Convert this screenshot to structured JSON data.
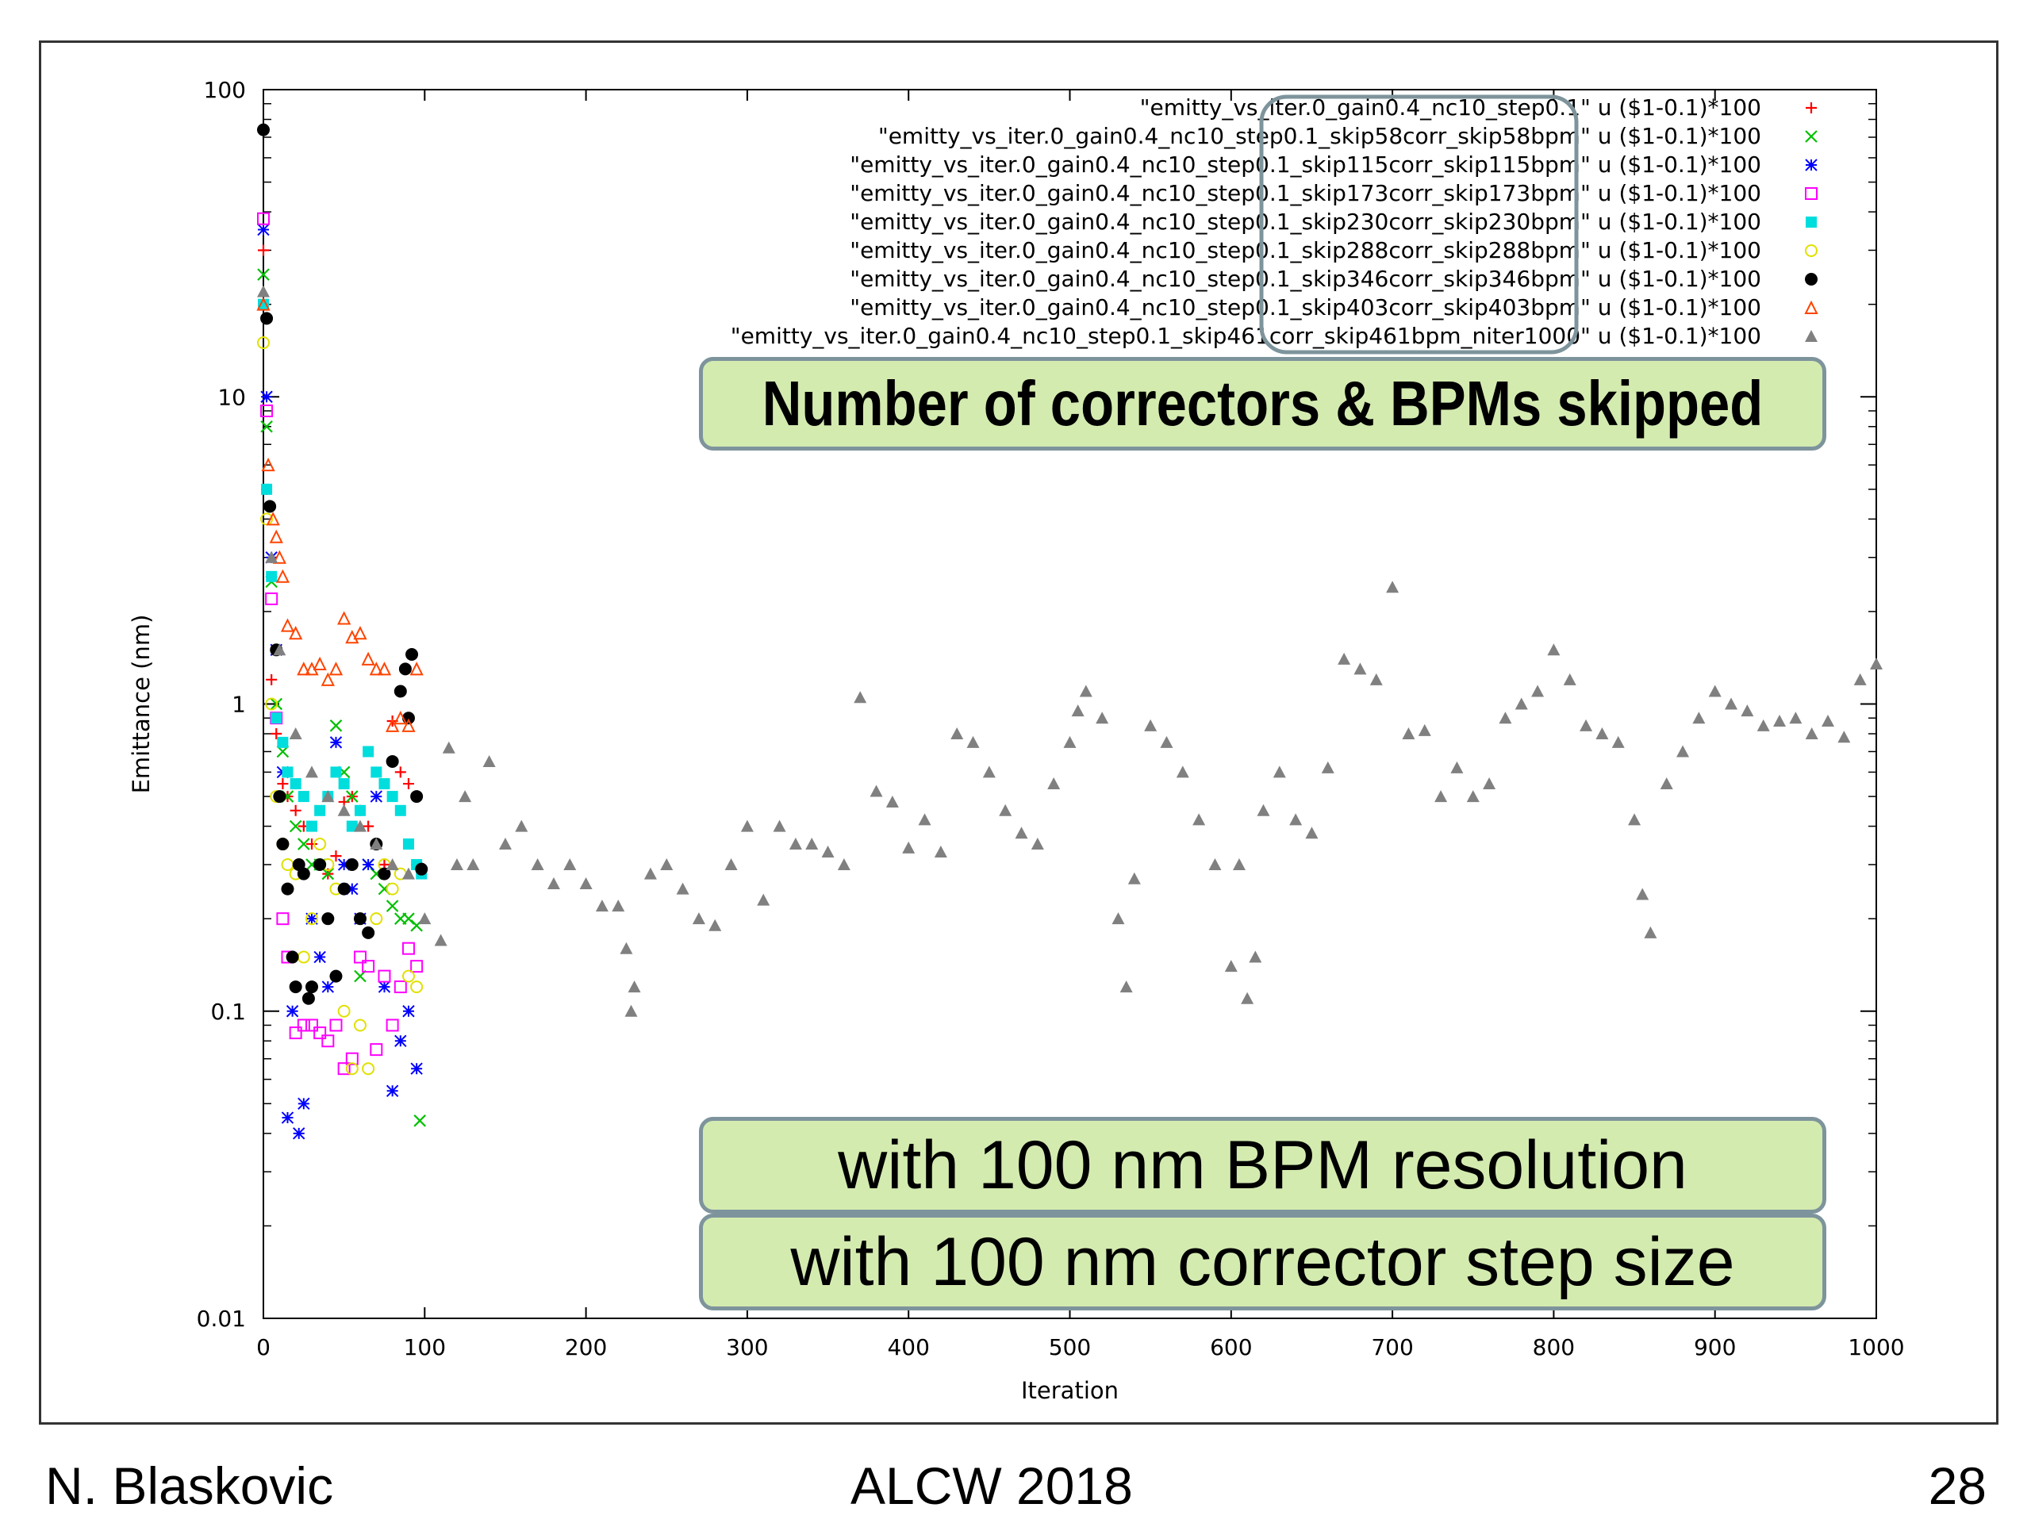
{
  "chart_data": {
    "type": "scatter",
    "xlabel": "Iteration",
    "ylabel": "Emittance (nm)",
    "xlim": [
      0,
      1000
    ],
    "ylim": [
      0.01,
      100
    ],
    "yscale": "log",
    "xticks": [
      "0",
      "100",
      "200",
      "300",
      "400",
      "500",
      "600",
      "700",
      "800",
      "900",
      "1000"
    ],
    "yticks": [
      "0.01",
      "0.1",
      "1",
      "10",
      "100"
    ],
    "legend_position": "top-right",
    "series": [
      {
        "name": "\"emitty_vs_iter.0_gain0.4_nc10_step0.1\" u ($1-0.1)*100",
        "color": "#ff0000",
        "marker": "plus",
        "x": [
          0,
          2,
          5,
          8,
          12,
          15,
          20,
          25,
          30,
          35,
          40,
          45,
          50,
          55,
          60,
          65,
          70,
          75,
          80,
          85,
          90,
          95
        ],
        "y": [
          30,
          5.0,
          1.2,
          0.8,
          0.55,
          0.5,
          0.45,
          0.4,
          0.35,
          0.3,
          0.28,
          0.32,
          0.48,
          0.5,
          0.45,
          0.4,
          0.35,
          0.3,
          0.88,
          0.6,
          0.55,
          0.3
        ]
      },
      {
        "name": "\"emitty_vs_iter.0_gain0.4_nc10_step0.1_skip58corr_skip58bpm\" u ($1-0.1)*100",
        "color": "#00c000",
        "marker": "x",
        "x": [
          0,
          2,
          5,
          8,
          12,
          15,
          20,
          25,
          30,
          35,
          40,
          45,
          50,
          55,
          60,
          65,
          70,
          75,
          80,
          85,
          90,
          95,
          97
        ],
        "y": [
          25,
          8.0,
          2.5,
          1.0,
          0.7,
          0.5,
          0.4,
          0.35,
          0.3,
          0.3,
          0.28,
          0.85,
          0.6,
          0.5,
          0.13,
          0.3,
          0.28,
          0.25,
          0.22,
          0.2,
          0.2,
          0.19,
          0.044
        ]
      },
      {
        "name": "\"emitty_vs_iter.0_gain0.4_nc10_step0.1_skip115corr_skip115bpm\" u ($1-0.1)*100",
        "color": "#0000ff",
        "marker": "star",
        "x": [
          0,
          2,
          5,
          8,
          12,
          15,
          18,
          22,
          25,
          30,
          35,
          40,
          45,
          50,
          55,
          60,
          65,
          70,
          75,
          80,
          85,
          90,
          95
        ],
        "y": [
          35,
          10,
          3.0,
          1.5,
          0.6,
          0.045,
          0.1,
          0.04,
          0.05,
          0.2,
          0.15,
          0.12,
          0.75,
          0.3,
          0.25,
          0.2,
          0.3,
          0.5,
          0.12,
          0.055,
          0.08,
          0.1,
          0.065
        ]
      },
      {
        "name": "\"emitty_vs_iter.0_gain0.4_nc10_step0.1_skip173corr_skip173bpm\" u ($1-0.1)*100",
        "color": "#ff00ff",
        "marker": "square",
        "x": [
          0,
          2,
          5,
          8,
          12,
          15,
          20,
          25,
          30,
          35,
          40,
          45,
          50,
          55,
          60,
          65,
          70,
          75,
          80,
          85,
          90,
          95
        ],
        "y": [
          38,
          9.0,
          2.2,
          0.9,
          0.2,
          0.15,
          0.085,
          0.09,
          0.09,
          0.085,
          0.08,
          0.09,
          0.065,
          0.07,
          0.15,
          0.14,
          0.075,
          0.13,
          0.09,
          0.12,
          0.16,
          0.14
        ]
      },
      {
        "name": "\"emitty_vs_iter.0_gain0.4_nc10_step0.1_skip230corr_skip230bpm\" u ($1-0.1)*100",
        "color": "#00dddd",
        "marker": "square-filled",
        "x": [
          0,
          2,
          5,
          8,
          12,
          15,
          20,
          25,
          30,
          35,
          40,
          45,
          50,
          55,
          60,
          65,
          70,
          75,
          80,
          85,
          90,
          95,
          98
        ],
        "y": [
          20,
          5.0,
          2.6,
          0.9,
          0.75,
          0.6,
          0.55,
          0.5,
          0.4,
          0.45,
          0.5,
          0.6,
          0.55,
          0.4,
          0.45,
          0.7,
          0.6,
          0.55,
          0.5,
          0.45,
          0.35,
          0.3,
          0.28
        ]
      },
      {
        "name": "\"emitty_vs_iter.0_gain0.4_nc10_step0.1_skip288corr_skip288bpm\" u ($1-0.1)*100",
        "color": "#e0e000",
        "marker": "circle",
        "x": [
          0,
          2,
          5,
          8,
          12,
          15,
          20,
          25,
          30,
          35,
          40,
          45,
          50,
          55,
          60,
          65,
          70,
          75,
          80,
          85,
          90,
          95
        ],
        "y": [
          15,
          4.0,
          1.0,
          0.5,
          0.35,
          0.3,
          0.28,
          0.15,
          0.2,
          0.35,
          0.3,
          0.25,
          0.1,
          0.065,
          0.09,
          0.065,
          0.2,
          0.3,
          0.25,
          0.28,
          0.13,
          0.12
        ]
      },
      {
        "name": "\"emitty_vs_iter.0_gain0.4_nc10_step0.1_skip346corr_skip346bpm\" u ($1-0.1)*100",
        "color": "#000000",
        "marker": "circle-filled",
        "x": [
          0,
          2,
          4,
          8,
          10,
          12,
          15,
          18,
          20,
          22,
          25,
          28,
          30,
          35,
          40,
          45,
          50,
          55,
          60,
          65,
          70,
          75,
          80,
          85,
          88,
          90,
          92,
          95,
          98
        ],
        "y": [
          74,
          18,
          4.4,
          1.5,
          0.5,
          0.35,
          0.25,
          0.15,
          0.12,
          0.3,
          0.28,
          0.11,
          0.12,
          0.3,
          0.2,
          0.13,
          0.25,
          0.3,
          0.2,
          0.18,
          0.35,
          0.28,
          0.65,
          1.1,
          1.3,
          0.9,
          1.45,
          0.5,
          0.29
        ]
      },
      {
        "name": "\"emitty_vs_iter.0_gain0.4_nc10_step0.1_skip403corr_skip403bpm\" u ($1-0.1)*100",
        "color": "#ff4400",
        "marker": "triangle",
        "x": [
          0,
          3,
          6,
          8,
          10,
          12,
          15,
          20,
          25,
          30,
          35,
          40,
          45,
          50,
          55,
          60,
          65,
          70,
          75,
          80,
          85,
          90,
          95
        ],
        "y": [
          20,
          6.0,
          4.0,
          3.5,
          3.0,
          2.6,
          1.8,
          1.7,
          1.3,
          1.3,
          1.35,
          1.2,
          1.3,
          1.9,
          1.65,
          1.7,
          1.4,
          1.3,
          1.3,
          0.85,
          0.9,
          0.85,
          1.3
        ]
      },
      {
        "name": "\"emitty_vs_iter.0_gain0.4_nc10_step0.1_skip461corr_skip461bpm_niter1000\" u ($1-0.1)*100",
        "color": "#808080",
        "marker": "triangle-filled",
        "x": [
          0,
          5,
          10,
          20,
          30,
          40,
          50,
          60,
          70,
          80,
          90,
          100,
          110,
          115,
          120,
          125,
          130,
          140,
          150,
          160,
          170,
          180,
          190,
          200,
          210,
          220,
          225,
          228,
          230,
          240,
          250,
          260,
          270,
          280,
          290,
          300,
          310,
          320,
          330,
          340,
          350,
          360,
          370,
          380,
          390,
          400,
          410,
          420,
          430,
          440,
          450,
          460,
          470,
          480,
          490,
          500,
          505,
          510,
          520,
          530,
          535,
          540,
          550,
          560,
          570,
          580,
          590,
          600,
          605,
          610,
          615,
          620,
          630,
          640,
          650,
          660,
          670,
          680,
          690,
          700,
          710,
          720,
          730,
          740,
          750,
          760,
          770,
          780,
          790,
          800,
          810,
          820,
          830,
          840,
          850,
          855,
          860,
          870,
          880,
          890,
          900,
          910,
          920,
          930,
          940,
          950,
          960,
          970,
          980,
          990,
          1000
        ],
        "y": [
          22,
          3.0,
          1.5,
          0.8,
          0.6,
          0.5,
          0.45,
          0.4,
          0.35,
          0.3,
          0.28,
          0.2,
          0.17,
          0.72,
          0.3,
          0.5,
          0.3,
          0.65,
          0.35,
          0.4,
          0.3,
          0.26,
          0.3,
          0.26,
          0.22,
          0.22,
          0.16,
          0.1,
          0.12,
          0.28,
          0.3,
          0.25,
          0.2,
          0.19,
          0.3,
          0.4,
          0.23,
          0.4,
          0.35,
          0.35,
          0.33,
          0.3,
          1.05,
          0.52,
          0.48,
          0.34,
          0.42,
          0.33,
          0.8,
          0.75,
          0.6,
          0.45,
          0.38,
          0.35,
          0.55,
          0.75,
          0.95,
          1.1,
          0.9,
          0.2,
          0.12,
          0.27,
          0.85,
          0.75,
          0.6,
          0.42,
          0.3,
          0.14,
          0.3,
          0.11,
          0.15,
          0.45,
          0.6,
          0.42,
          0.38,
          0.62,
          1.4,
          1.3,
          1.2,
          2.4,
          0.8,
          0.82,
          0.5,
          0.62,
          0.5,
          0.55,
          0.9,
          1.0,
          1.1,
          1.5,
          1.2,
          0.85,
          0.8,
          0.75,
          0.42,
          0.24,
          0.18,
          0.55,
          0.7,
          0.9,
          1.1,
          1.0,
          0.95,
          0.85,
          0.88,
          0.9,
          0.8,
          0.88,
          0.78,
          1.2,
          1.35
        ]
      }
    ]
  },
  "callouts": {
    "title": "Number of correctors & BPMs skipped",
    "bpm_resolution": "with 100 nm BPM resolution",
    "corrector_step": "with 100 nm corrector step size"
  },
  "footer": {
    "author": "N. Blaskovic",
    "event": "ALCW 2018",
    "page": "28"
  }
}
